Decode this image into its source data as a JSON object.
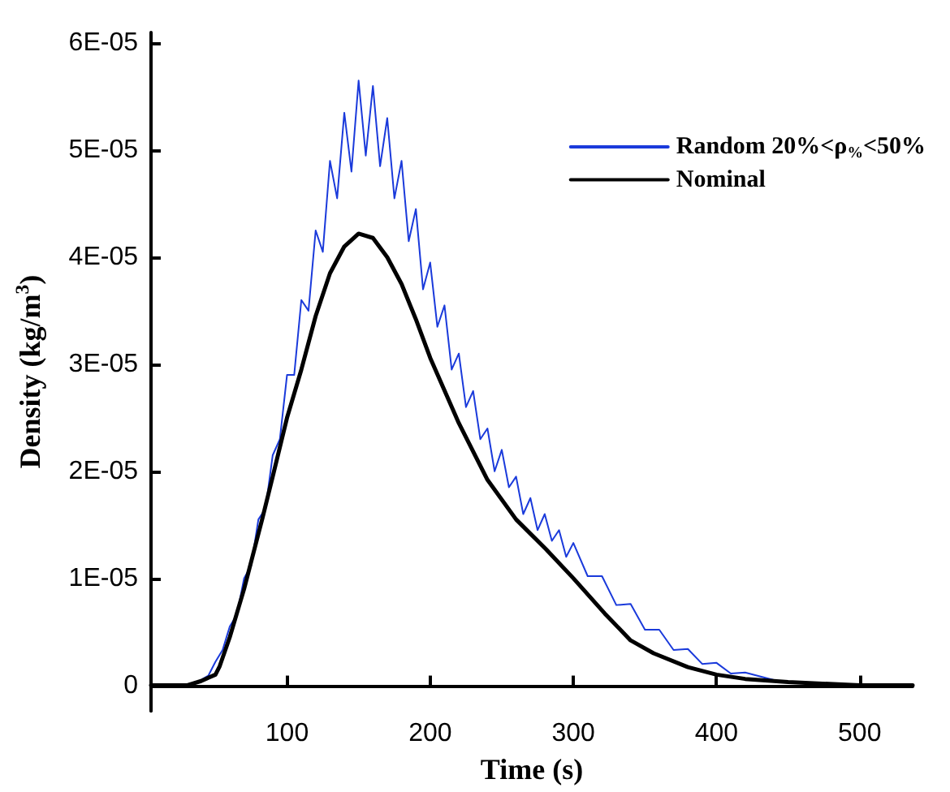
{
  "chart_data": {
    "type": "line",
    "xlabel": "Time (s)",
    "ylabel": "Density (kg/m$^{3}$)",
    "xlim": [
      5,
      537
    ],
    "xticks": [
      100,
      200,
      300,
      400,
      500
    ],
    "ylim": [
      -2.4e-06,
      6.1e-05
    ],
    "yticks": [
      {
        "value": 0,
        "label": "0"
      },
      {
        "value": 1e-05,
        "label": "1E-05"
      },
      {
        "value": 2e-05,
        "label": "2E-05"
      },
      {
        "value": 3e-05,
        "label": "3E-05"
      },
      {
        "value": 4e-05,
        "label": "4E-05"
      },
      {
        "value": 5e-05,
        "label": "5E-05"
      },
      {
        "value": 6e-05,
        "label": "6E-05"
      }
    ],
    "grid": false,
    "legend": "top right",
    "marker": "none",
    "line_style": "solid",
    "series": [
      {
        "name": "Random 20%<ρ$_{%}$<50%",
        "color": "#1a3adb",
        "x": [
          40,
          45,
          50,
          55,
          60,
          65,
          70,
          75,
          80,
          85,
          90,
          95,
          100,
          105,
          110,
          115,
          120,
          125,
          130,
          135,
          140,
          145,
          150,
          155,
          160,
          165,
          170,
          175,
          180,
          185,
          190,
          195,
          200,
          205,
          210,
          215,
          220,
          225,
          230,
          235,
          240,
          245,
          250,
          255,
          260,
          265,
          270,
          275,
          280,
          285,
          290,
          295,
          300,
          310,
          320,
          330,
          340,
          350,
          360,
          370,
          380,
          390,
          400,
          410,
          420,
          440
        ],
        "values": [
          5e-07,
          9e-07,
          2.2e-06,
          3.3e-06,
          5.5e-06,
          6.6e-06,
          1e-05,
          1.12e-05,
          1.55e-05,
          1.65e-05,
          2.15e-05,
          2.3e-05,
          2.9e-05,
          2.9e-05,
          3.6e-05,
          3.5e-05,
          4.25e-05,
          4.05e-05,
          4.9e-05,
          4.55e-05,
          5.35e-05,
          4.8e-05,
          5.65e-05,
          4.95e-05,
          5.6e-05,
          4.85e-05,
          5.3e-05,
          4.55e-05,
          4.9e-05,
          4.15e-05,
          4.45e-05,
          3.7e-05,
          3.95e-05,
          3.35e-05,
          3.55e-05,
          2.95e-05,
          3.1e-05,
          2.6e-05,
          2.75e-05,
          2.3e-05,
          2.4e-05,
          2e-05,
          2.2e-05,
          1.85e-05,
          1.95e-05,
          1.6e-05,
          1.75e-05,
          1.45e-05,
          1.6e-05,
          1.35e-05,
          1.45e-05,
          1.2e-05,
          1.33e-05,
          1.02e-05,
          1.02e-05,
          7.5e-06,
          7.6e-06,
          5.2e-06,
          5.2e-06,
          3.3e-06,
          3.4e-06,
          2e-06,
          2.1e-06,
          1.1e-06,
          1.2e-06,
          5e-07
        ]
      },
      {
        "name": "Nominal",
        "color": "#000000",
        "x": [
          5,
          30,
          40,
          45,
          50,
          53,
          60,
          70,
          83,
          90,
          100,
          110,
          120,
          130,
          140,
          150,
          160,
          170,
          180,
          190,
          200,
          220,
          240,
          260,
          281,
          300,
          322,
          340,
          356,
          380,
          400,
          420,
          450,
          500,
          537
        ],
        "values": [
          0,
          0,
          4e-07,
          7e-07,
          1e-06,
          1.8e-06,
          4.5e-06,
          9e-06,
          1.57e-05,
          1.95e-05,
          2.5e-05,
          2.95e-05,
          3.45e-05,
          3.85e-05,
          4.1e-05,
          4.22e-05,
          4.18e-05,
          4e-05,
          3.75e-05,
          3.42e-05,
          3.06e-05,
          2.45e-05,
          1.92e-05,
          1.55e-05,
          1.27e-05,
          1e-05,
          6.7e-06,
          4.2e-06,
          3e-06,
          1.7e-06,
          1e-06,
          6e-07,
          3e-07,
          0,
          0
        ]
      }
    ]
  }
}
